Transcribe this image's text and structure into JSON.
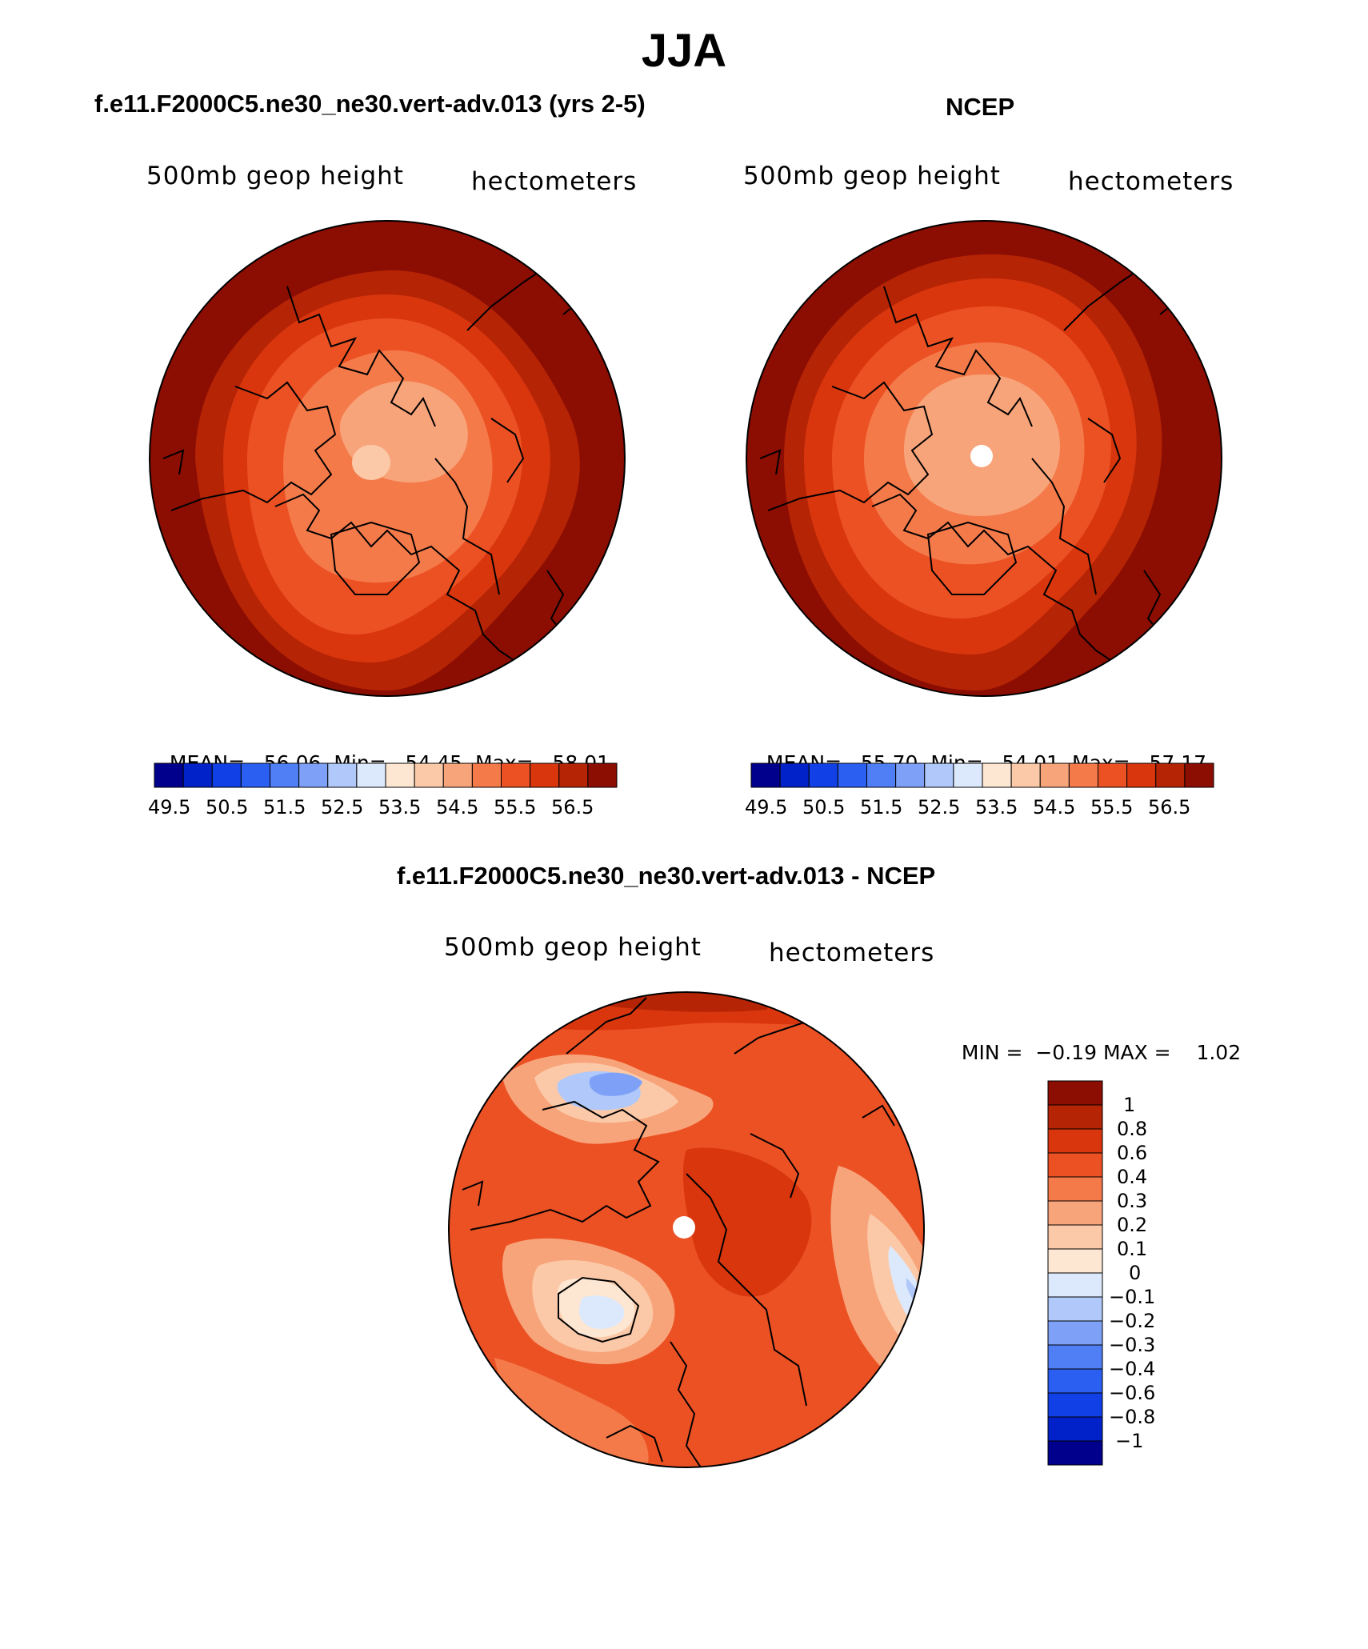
{
  "title": "JJA",
  "panels": [
    {
      "title": "f.e11.F2000C5.ne30_ne30.vert-adv.013 (yrs 2-5)",
      "left_label": "500mb geop height",
      "right_label": "hectometers",
      "mean_label": "MEAN=",
      "mean": "56.06",
      "min_label": "Min=",
      "min": "54.45",
      "max_label": "Max=",
      "max": "58.01"
    },
    {
      "title": "NCEP",
      "left_label": "500mb geop height",
      "right_label": "hectometers",
      "mean_label": "MEAN=",
      "mean": "55.70",
      "min_label": "Min=",
      "min": "54.01",
      "max_label": "Max=",
      "max": "57.17"
    }
  ],
  "diff_panel": {
    "title": "f.e11.F2000C5.ne30_ne30.vert-adv.013 - NCEP",
    "left_label": "500mb geop height",
    "right_label": "hectometers",
    "min_label": "MIN =",
    "min": "−0.19",
    "max_label": "MAX =",
    "max": "1.02"
  },
  "colorbar_top": {
    "colors": [
      "#00008c",
      "#0022c8",
      "#1040e6",
      "#2a5ff2",
      "#4f7ef5",
      "#7ea1f7",
      "#b0c8fa",
      "#dce9fc",
      "#fde6d2",
      "#fbc9a8",
      "#f8a47a",
      "#f47a4a",
      "#ec5124",
      "#d9360e",
      "#b52405",
      "#8c0d02"
    ],
    "labels": [
      "49.5",
      "50.5",
      "51.5",
      "52.5",
      "53.5",
      "54.5",
      "55.5",
      "56.5"
    ]
  },
  "colorbar_diff": {
    "colors_top_to_bottom": [
      "#8c0d02",
      "#b52405",
      "#d9360e",
      "#ec5124",
      "#f47a4a",
      "#f8a47a",
      "#fbc9a8",
      "#fde6d2",
      "#dce9fc",
      "#b0c8fa",
      "#7ea1f7",
      "#4f7ef5",
      "#2a5ff2",
      "#1040e6",
      "#0022c8",
      "#00008c"
    ],
    "labels_top_to_bottom": [
      "1",
      "0.8",
      "0.6",
      "0.4",
      "0.3",
      "0.2",
      "0.1",
      "0",
      "−0.1",
      "−0.2",
      "−0.3",
      "−0.4",
      "−0.6",
      "−0.8",
      "−1"
    ]
  },
  "map_fill": {
    "model": [
      "#8c0d02",
      "#b52405",
      "#d9360e",
      "#ec5124",
      "#f47a4a",
      "#f8a47a",
      "#fbc9a8"
    ],
    "ncep": [
      "#8c0d02",
      "#b52405",
      "#d9360e",
      "#ec5124",
      "#f47a4a",
      "#f8a47a"
    ],
    "diff_base": "#ec5124"
  }
}
